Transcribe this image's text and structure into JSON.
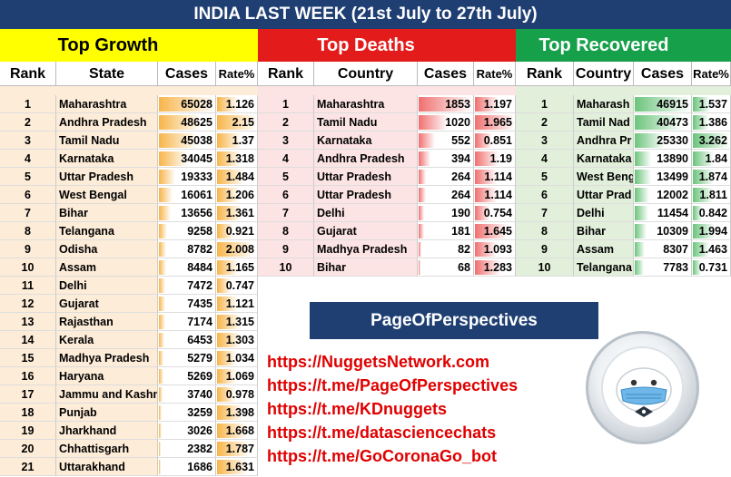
{
  "title": "INDIA LAST WEEK  (21st July to 27th July)",
  "sections": {
    "growth": "Top Growth",
    "deaths": "Top Deaths",
    "recovered": "Top Recovered"
  },
  "columns": {
    "growth": [
      "Rank",
      "State",
      "Cases",
      "Rate%"
    ],
    "deaths": [
      "Rank",
      "Country",
      "Cases",
      "Rate%"
    ],
    "recovered": [
      "Rank",
      "Country",
      "Cases",
      "Rate%"
    ]
  },
  "colors": {
    "title_bg": "#1f3f73",
    "growth_hdr": "#ffff00",
    "deaths_hdr": "#e31b1b",
    "recovered_hdr": "#16a04a",
    "growth_row": "#fdecd8",
    "deaths_row": "#fde4e4",
    "recovered_row": "#e2efdb",
    "growth_bar": "#f7b54a",
    "deaths_bar": "#f07070",
    "recovered_bar": "#6cc47c",
    "link": "#e00000"
  },
  "growth": [
    {
      "rank": "1",
      "name": "Maharashtra",
      "cases": "65028",
      "rate": "1.126"
    },
    {
      "rank": "2",
      "name": "Andhra Pradesh",
      "cases": "48625",
      "rate": "2.15"
    },
    {
      "rank": "3",
      "name": "Tamil Nadu",
      "cases": "45038",
      "rate": "1.37"
    },
    {
      "rank": "4",
      "name": "Karnataka",
      "cases": "34045",
      "rate": "1.318"
    },
    {
      "rank": "5",
      "name": "Uttar Pradesh",
      "cases": "19333",
      "rate": "1.484"
    },
    {
      "rank": "6",
      "name": "West Bengal",
      "cases": "16061",
      "rate": "1.206"
    },
    {
      "rank": "7",
      "name": "Bihar",
      "cases": "13656",
      "rate": "1.361"
    },
    {
      "rank": "8",
      "name": "Telangana",
      "cases": "9258",
      "rate": "0.921"
    },
    {
      "rank": "9",
      "name": "Odisha",
      "cases": "8782",
      "rate": "2.008"
    },
    {
      "rank": "10",
      "name": "Assam",
      "cases": "8484",
      "rate": "1.165"
    },
    {
      "rank": "11",
      "name": "Delhi",
      "cases": "7472",
      "rate": "0.747"
    },
    {
      "rank": "12",
      "name": "Gujarat",
      "cases": "7435",
      "rate": "1.121"
    },
    {
      "rank": "13",
      "name": "Rajasthan",
      "cases": "7174",
      "rate": "1.315"
    },
    {
      "rank": "14",
      "name": "Kerala",
      "cases": "6453",
      "rate": "1.303"
    },
    {
      "rank": "15",
      "name": "Madhya Pradesh",
      "cases": "5279",
      "rate": "1.034"
    },
    {
      "rank": "16",
      "name": "Haryana",
      "cases": "5269",
      "rate": "1.069"
    },
    {
      "rank": "17",
      "name": "Jammu and Kashm",
      "cases": "3740",
      "rate": "0.978"
    },
    {
      "rank": "18",
      "name": "Punjab",
      "cases": "3259",
      "rate": "1.398"
    },
    {
      "rank": "19",
      "name": "Jharkhand",
      "cases": "3026",
      "rate": "1.668"
    },
    {
      "rank": "20",
      "name": "Chhattisgarh",
      "cases": "2382",
      "rate": "1.787"
    },
    {
      "rank": "21",
      "name": "Uttarakhand",
      "cases": "1686",
      "rate": "1.631"
    }
  ],
  "deaths": [
    {
      "rank": "1",
      "name": "Maharashtra",
      "cases": "1853",
      "rate": "1.197"
    },
    {
      "rank": "2",
      "name": "Tamil Nadu",
      "cases": "1020",
      "rate": "1.965"
    },
    {
      "rank": "3",
      "name": "Karnataka",
      "cases": "552",
      "rate": "0.851"
    },
    {
      "rank": "4",
      "name": "Andhra Pradesh",
      "cases": "394",
      "rate": "1.19"
    },
    {
      "rank": "5",
      "name": "Uttar Pradesh",
      "cases": "264",
      "rate": "1.114"
    },
    {
      "rank": "6",
      "name": "Uttar Pradesh",
      "cases": "264",
      "rate": "1.114"
    },
    {
      "rank": "7",
      "name": "Delhi",
      "cases": "190",
      "rate": "0.754"
    },
    {
      "rank": "8",
      "name": "Gujarat",
      "cases": "181",
      "rate": "1.645"
    },
    {
      "rank": "9",
      "name": "Madhya Pradesh",
      "cases": "82",
      "rate": "1.093"
    },
    {
      "rank": "10",
      "name": "Bihar",
      "cases": "68",
      "rate": "1.283"
    }
  ],
  "recovered": [
    {
      "rank": "1",
      "name": "Maharash",
      "cases": "46915",
      "rate": "1.537"
    },
    {
      "rank": "2",
      "name": "Tamil Nad",
      "cases": "40473",
      "rate": "1.386"
    },
    {
      "rank": "3",
      "name": "Andhra Pr",
      "cases": "25330",
      "rate": "3.262"
    },
    {
      "rank": "4",
      "name": "Karnataka",
      "cases": "13890",
      "rate": "1.84"
    },
    {
      "rank": "5",
      "name": "West Beng",
      "cases": "13499",
      "rate": "1.874"
    },
    {
      "rank": "6",
      "name": "Uttar Prad",
      "cases": "12002",
      "rate": "1.811"
    },
    {
      "rank": "7",
      "name": "Delhi",
      "cases": "11454",
      "rate": "0.842"
    },
    {
      "rank": "8",
      "name": "Bihar",
      "cases": "10309",
      "rate": "1.994"
    },
    {
      "rank": "9",
      "name": "Assam",
      "cases": "8307",
      "rate": "1.463"
    },
    {
      "rank": "10",
      "name": "Telangana",
      "cases": "7783",
      "rate": "0.731"
    }
  ],
  "promo": {
    "brand": "PageOfPerspectives",
    "links": [
      "https://NuggetsNetwork.com",
      "https://t.me/PageOfPerspectives",
      "https://t.me/KDnuggets",
      "https://t.me/datasciencechats",
      "https://t.me/GoCoronaGo_bot"
    ],
    "logo_icon": "robot-with-mask-icon"
  }
}
